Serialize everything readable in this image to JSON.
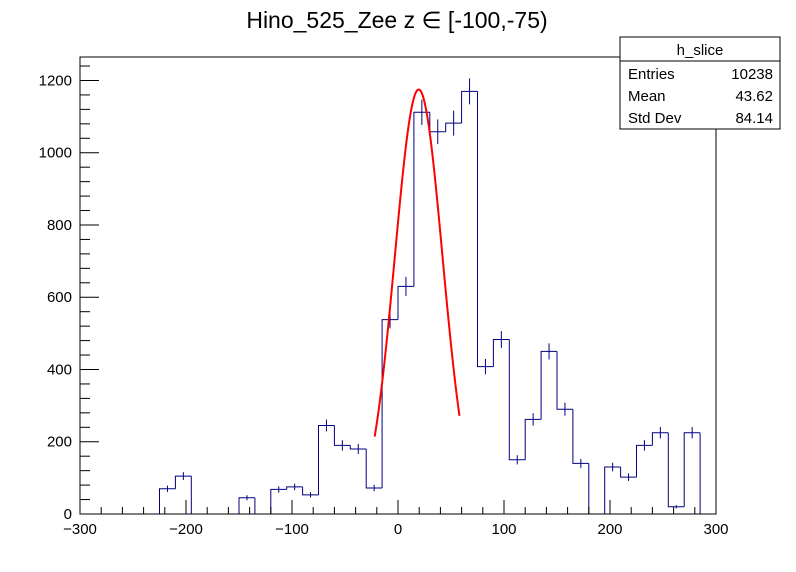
{
  "chart_data": {
    "type": "histogram",
    "title": "Hino_525_Zee z  ∈ [-100,-75)",
    "xlabel": "",
    "ylabel": "",
    "xlim": [
      -300,
      300
    ],
    "ylim": [
      0,
      1265
    ],
    "x_ticks": [
      -300,
      -200,
      -100,
      0,
      100,
      200,
      300
    ],
    "y_ticks": [
      0,
      200,
      400,
      600,
      800,
      1000,
      1200
    ],
    "bin_width": 15,
    "bins": [
      {
        "x": -232.5,
        "y": 0
      },
      {
        "x": -217.5,
        "y": 70
      },
      {
        "x": -202.5,
        "y": 105
      },
      {
        "x": -187.5,
        "y": 0
      },
      {
        "x": -172.5,
        "y": 0
      },
      {
        "x": -157.5,
        "y": 0
      },
      {
        "x": -142.5,
        "y": 45
      },
      {
        "x": -127.5,
        "y": 0
      },
      {
        "x": -112.5,
        "y": 68
      },
      {
        "x": -97.5,
        "y": 75
      },
      {
        "x": -82.5,
        "y": 53
      },
      {
        "x": -67.5,
        "y": 245
      },
      {
        "x": -52.5,
        "y": 190
      },
      {
        "x": -37.5,
        "y": 180
      },
      {
        "x": -22.5,
        "y": 72
      },
      {
        "x": -7.5,
        "y": 538
      },
      {
        "x": 7.5,
        "y": 630
      },
      {
        "x": 22.5,
        "y": 1112
      },
      {
        "x": 37.5,
        "y": 1058
      },
      {
        "x": 52.5,
        "y": 1082
      },
      {
        "x": 67.5,
        "y": 1170
      },
      {
        "x": 82.5,
        "y": 408
      },
      {
        "x": 97.5,
        "y": 483
      },
      {
        "x": 112.5,
        "y": 150
      },
      {
        "x": 127.5,
        "y": 262
      },
      {
        "x": 142.5,
        "y": 450
      },
      {
        "x": 157.5,
        "y": 290
      },
      {
        "x": 172.5,
        "y": 140
      },
      {
        "x": 187.5,
        "y": 0
      },
      {
        "x": 202.5,
        "y": 130
      },
      {
        "x": 217.5,
        "y": 102
      },
      {
        "x": 232.5,
        "y": 190
      },
      {
        "x": 247.5,
        "y": 225
      },
      {
        "x": 262.5,
        "y": 20
      },
      {
        "x": 277.5,
        "y": 225
      },
      {
        "x": 292.5,
        "y": 0
      }
    ],
    "fit": {
      "type": "gaus",
      "color": "#ff0000",
      "constant": 1175,
      "mean": 19.5,
      "sigma": 22.5,
      "range": [
        -22,
        58
      ]
    },
    "series_color": "#000080",
    "stats_box": {
      "name": "h_slice",
      "rows": [
        {
          "label": "Entries",
          "value": "10238"
        },
        {
          "label": "Mean",
          "value": "43.62"
        },
        {
          "label": "Std Dev",
          "value": "84.14"
        }
      ]
    }
  }
}
